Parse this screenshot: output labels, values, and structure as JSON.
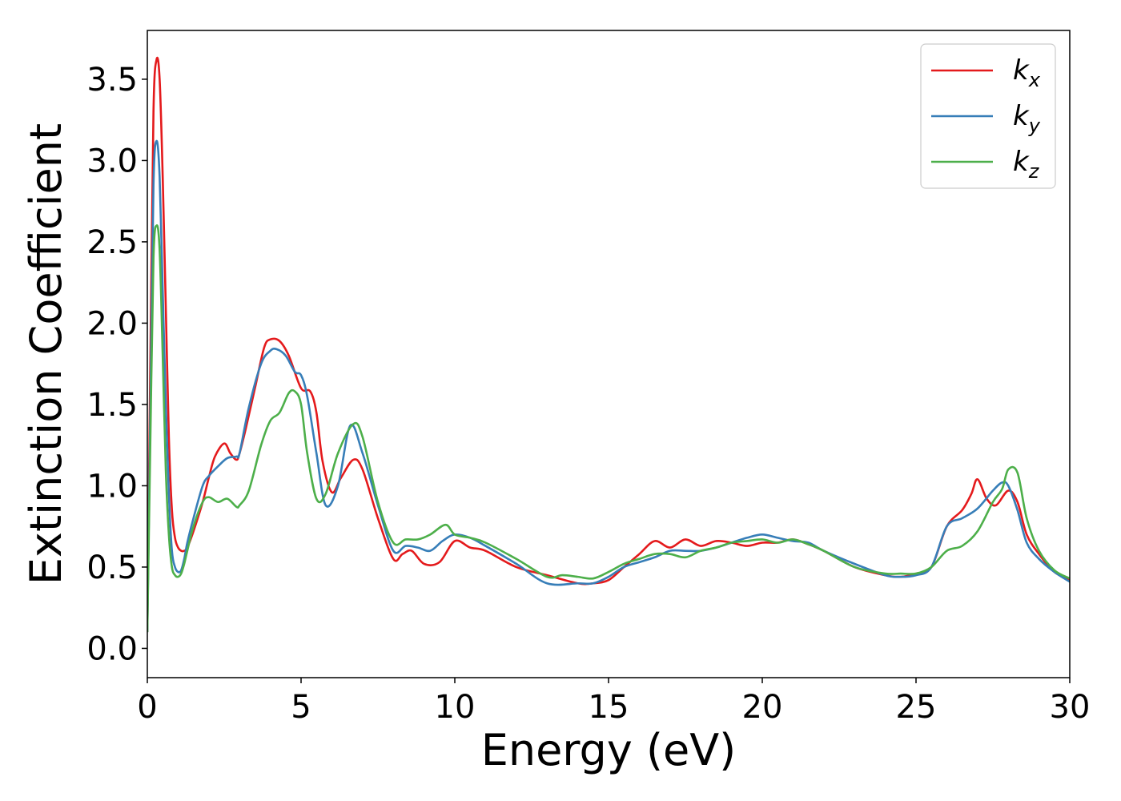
{
  "chart_data": {
    "type": "line",
    "xlabel": "Energy (eV)",
    "ylabel": "Extinction Coefficient",
    "xlim": [
      0,
      30
    ],
    "ylim": [
      -0.18,
      3.8
    ],
    "xticks": [
      "0",
      "5",
      "10",
      "15",
      "20",
      "25",
      "30"
    ],
    "yticks": [
      "0.0",
      "0.5",
      "1.0",
      "1.5",
      "2.0",
      "2.5",
      "3.0",
      "3.5"
    ],
    "grid": false,
    "legend_position": "top-right",
    "series": [
      {
        "name": "k_x",
        "label_main": "k",
        "label_sub": "x",
        "color": "#e41a1c",
        "x": [
          0,
          0.1,
          0.2,
          0.3,
          0.4,
          0.5,
          0.6,
          0.7,
          0.8,
          0.9,
          1.0,
          1.1,
          1.2,
          1.3,
          1.5,
          1.8,
          2.0,
          2.2,
          2.5,
          2.7,
          2.9,
          3.0,
          3.2,
          3.5,
          3.8,
          4.0,
          4.3,
          4.6,
          5.0,
          5.3,
          5.5,
          5.7,
          6.0,
          6.3,
          6.7,
          7.0,
          7.5,
          8.0,
          8.3,
          8.6,
          9.0,
          9.5,
          10.0,
          10.5,
          11.0,
          12.0,
          13.0,
          14.0,
          14.5,
          15.0,
          15.5,
          16.0,
          16.5,
          17.0,
          17.5,
          18.0,
          18.5,
          19.0,
          19.5,
          20.0,
          20.5,
          21.0,
          21.5,
          22.0,
          23.0,
          24.0,
          24.5,
          25.0,
          25.5,
          26.0,
          26.5,
          26.8,
          27.0,
          27.3,
          27.6,
          28.0,
          28.3,
          28.6,
          29.0,
          29.5,
          30.0
        ],
        "y": [
          0.1,
          1.8,
          3.3,
          3.62,
          3.5,
          2.9,
          2.1,
          1.3,
          0.85,
          0.68,
          0.62,
          0.6,
          0.6,
          0.62,
          0.72,
          0.9,
          1.05,
          1.18,
          1.26,
          1.2,
          1.16,
          1.2,
          1.35,
          1.6,
          1.85,
          1.9,
          1.89,
          1.8,
          1.6,
          1.58,
          1.45,
          1.15,
          0.96,
          1.05,
          1.16,
          1.1,
          0.8,
          0.55,
          0.58,
          0.6,
          0.52,
          0.53,
          0.66,
          0.62,
          0.6,
          0.5,
          0.45,
          0.4,
          0.4,
          0.42,
          0.5,
          0.58,
          0.66,
          0.62,
          0.67,
          0.63,
          0.66,
          0.65,
          0.63,
          0.65,
          0.65,
          0.67,
          0.64,
          0.6,
          0.5,
          0.45,
          0.44,
          0.46,
          0.5,
          0.75,
          0.85,
          0.95,
          1.04,
          0.92,
          0.88,
          0.97,
          0.9,
          0.7,
          0.58,
          0.47,
          0.42
        ]
      },
      {
        "name": "k_y",
        "label_main": "k",
        "label_sub": "y",
        "color": "#377eb8",
        "x": [
          0,
          0.1,
          0.2,
          0.3,
          0.4,
          0.5,
          0.6,
          0.7,
          0.8,
          0.9,
          1.0,
          1.1,
          1.2,
          1.3,
          1.5,
          1.8,
          2.0,
          2.3,
          2.6,
          2.9,
          3.0,
          3.3,
          3.7,
          4.0,
          4.2,
          4.5,
          4.8,
          5.0,
          5.2,
          5.5,
          5.8,
          6.2,
          6.6,
          7.0,
          7.5,
          8.0,
          8.4,
          8.8,
          9.2,
          9.6,
          10.0,
          10.5,
          11.0,
          12.0,
          13.0,
          14.0,
          14.5,
          15.0,
          15.5,
          16.0,
          16.5,
          17.0,
          17.5,
          18.0,
          18.5,
          19.0,
          19.5,
          20.0,
          20.5,
          21.0,
          21.5,
          22.0,
          23.0,
          24.0,
          24.5,
          25.0,
          25.5,
          26.0,
          26.5,
          27.0,
          27.5,
          27.8,
          28.0,
          28.3,
          28.6,
          29.0,
          29.5,
          30.0
        ],
        "y": [
          0.1,
          1.5,
          2.85,
          3.12,
          2.9,
          2.2,
          1.5,
          0.95,
          0.6,
          0.5,
          0.47,
          0.48,
          0.55,
          0.65,
          0.8,
          1.0,
          1.06,
          1.12,
          1.17,
          1.18,
          1.2,
          1.48,
          1.75,
          1.83,
          1.84,
          1.8,
          1.7,
          1.68,
          1.55,
          1.2,
          0.88,
          1.0,
          1.37,
          1.2,
          0.88,
          0.6,
          0.63,
          0.62,
          0.6,
          0.66,
          0.7,
          0.68,
          0.63,
          0.52,
          0.4,
          0.4,
          0.4,
          0.44,
          0.5,
          0.53,
          0.56,
          0.6,
          0.6,
          0.6,
          0.62,
          0.65,
          0.68,
          0.7,
          0.68,
          0.66,
          0.65,
          0.6,
          0.52,
          0.45,
          0.44,
          0.45,
          0.5,
          0.75,
          0.8,
          0.86,
          0.97,
          1.02,
          1.0,
          0.85,
          0.65,
          0.55,
          0.47,
          0.41
        ]
      },
      {
        "name": "k_z",
        "label_main": "k",
        "label_sub": "z",
        "color": "#4daf4a",
        "x": [
          0,
          0.1,
          0.2,
          0.3,
          0.4,
          0.5,
          0.6,
          0.7,
          0.8,
          0.9,
          1.0,
          1.1,
          1.2,
          1.3,
          1.5,
          1.8,
          2.0,
          2.3,
          2.6,
          2.9,
          3.0,
          3.3,
          3.7,
          4.0,
          4.3,
          4.6,
          4.8,
          5.0,
          5.2,
          5.5,
          5.8,
          6.2,
          6.7,
          7.0,
          7.5,
          8.0,
          8.4,
          8.8,
          9.2,
          9.7,
          10.0,
          10.5,
          11.0,
          12.0,
          13.0,
          13.5,
          14.0,
          14.5,
          15.0,
          15.5,
          16.0,
          16.5,
          17.0,
          17.5,
          18.0,
          18.5,
          19.0,
          19.5,
          20.0,
          20.5,
          21.0,
          21.5,
          22.0,
          23.0,
          24.0,
          24.5,
          25.0,
          25.5,
          26.0,
          26.5,
          27.0,
          27.5,
          27.8,
          28.0,
          28.3,
          28.6,
          29.0,
          29.5,
          30.0
        ],
        "y": [
          0.1,
          1.3,
          2.4,
          2.6,
          2.45,
          1.8,
          1.1,
          0.7,
          0.5,
          0.45,
          0.44,
          0.46,
          0.52,
          0.6,
          0.75,
          0.9,
          0.93,
          0.9,
          0.92,
          0.87,
          0.88,
          0.97,
          1.25,
          1.4,
          1.45,
          1.57,
          1.58,
          1.5,
          1.2,
          0.92,
          0.95,
          1.2,
          1.38,
          1.3,
          0.9,
          0.65,
          0.67,
          0.67,
          0.7,
          0.76,
          0.7,
          0.68,
          0.65,
          0.55,
          0.44,
          0.45,
          0.44,
          0.43,
          0.47,
          0.52,
          0.55,
          0.58,
          0.58,
          0.56,
          0.6,
          0.62,
          0.65,
          0.66,
          0.67,
          0.65,
          0.67,
          0.64,
          0.6,
          0.5,
          0.46,
          0.46,
          0.46,
          0.5,
          0.6,
          0.63,
          0.72,
          0.9,
          0.98,
          1.1,
          1.08,
          0.8,
          0.6,
          0.48,
          0.43
        ]
      }
    ]
  }
}
